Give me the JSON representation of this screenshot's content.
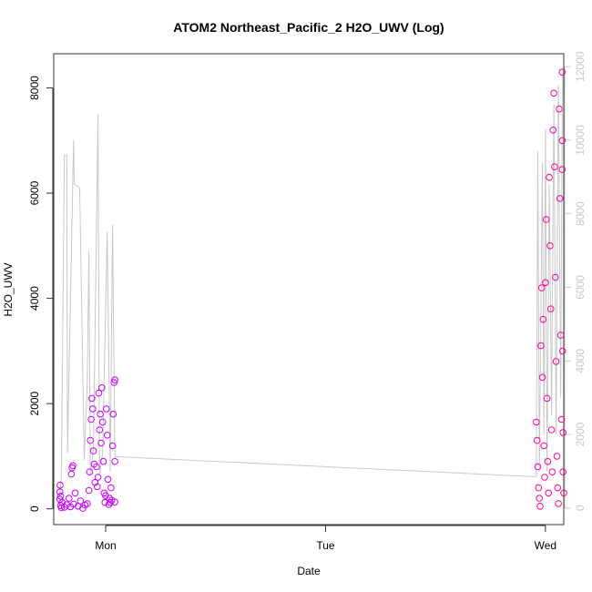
{
  "chart_data": {
    "type": "scatter",
    "title": "ATOM2 Northeast_Pacific_2 H2O_UWV (Log)",
    "xlabel": "Date",
    "ylabel": "H2O_UWV",
    "x_ticks": [
      "Mon",
      "Tue",
      "Wed"
    ],
    "y_ticks": [
      "0",
      "2000",
      "4000",
      "6000",
      "8000"
    ],
    "y_right_ticks": [
      "0",
      "2000",
      "4000",
      "6000",
      "8000",
      "10000",
      "12000"
    ],
    "x_range": [
      "Sun 18:20",
      "Wed 02:00"
    ],
    "ylim": [
      -300,
      8650
    ],
    "y_right_lim": [
      -450,
      12350
    ],
    "grid": false,
    "colors": {
      "points_early": "#cc00ff",
      "points_late": "#ff0099",
      "line": "#c8c8c8"
    },
    "series": [
      {
        "marker": "circle",
        "points": [
          {
            "x": "Sun 19:00",
            "y": 320
          },
          {
            "x": "Sun 19:00",
            "y": 180
          },
          {
            "x": "Sun 19:02",
            "y": 450
          },
          {
            "x": "Sun 19:05",
            "y": 60
          },
          {
            "x": "Sun 19:05",
            "y": 240
          },
          {
            "x": "Sun 19:10",
            "y": 20
          },
          {
            "x": "Sun 19:15",
            "y": 120
          },
          {
            "x": "Sun 19:30",
            "y": 30
          },
          {
            "x": "Sun 19:45",
            "y": 80
          },
          {
            "x": "Sun 20:00",
            "y": 200
          },
          {
            "x": "Sun 20:10",
            "y": 40
          },
          {
            "x": "Sun 20:15",
            "y": 660
          },
          {
            "x": "Sun 20:20",
            "y": 780
          },
          {
            "x": "Sun 20:25",
            "y": 820
          },
          {
            "x": "Sun 20:30",
            "y": 90
          },
          {
            "x": "Sun 20:40",
            "y": 300
          },
          {
            "x": "Sun 21:00",
            "y": 50
          },
          {
            "x": "Sun 21:15",
            "y": 150
          },
          {
            "x": "Sun 21:30",
            "y": 10
          },
          {
            "x": "Sun 21:45",
            "y": 70
          },
          {
            "x": "Sun 22:00",
            "y": 100
          },
          {
            "x": "Sun 22:10",
            "y": 350
          },
          {
            "x": "Sun 22:15",
            "y": 700
          },
          {
            "x": "Sun 22:20",
            "y": 1300
          },
          {
            "x": "Sun 22:25",
            "y": 1700
          },
          {
            "x": "Sun 22:30",
            "y": 2100
          },
          {
            "x": "Sun 22:35",
            "y": 1900
          },
          {
            "x": "Sun 22:40",
            "y": 1100
          },
          {
            "x": "Sun 22:45",
            "y": 850
          },
          {
            "x": "Sun 22:50",
            "y": 500
          },
          {
            "x": "Sun 23:00",
            "y": 800
          },
          {
            "x": "Sun 23:05",
            "y": 420
          },
          {
            "x": "Sun 23:10",
            "y": 600
          },
          {
            "x": "Sun 23:15",
            "y": 2200
          },
          {
            "x": "Sun 23:20",
            "y": 1500
          },
          {
            "x": "Sun 23:25",
            "y": 1800
          },
          {
            "x": "Sun 23:30",
            "y": 1250
          },
          {
            "x": "Sun 23:35",
            "y": 2300
          },
          {
            "x": "Sun 23:40",
            "y": 1650
          },
          {
            "x": "Sun 23:45",
            "y": 900
          },
          {
            "x": "Sun 23:50",
            "y": 300
          },
          {
            "x": "Sun 23:55",
            "y": 120
          },
          {
            "x": "Mon 00:00",
            "y": 250
          },
          {
            "x": "Mon 00:05",
            "y": 1900
          },
          {
            "x": "Mon 00:10",
            "y": 1400
          },
          {
            "x": "Mon 00:15",
            "y": 560
          },
          {
            "x": "Mon 00:20",
            "y": 80
          },
          {
            "x": "Mon 00:25",
            "y": 200
          },
          {
            "x": "Mon 00:30",
            "y": 120
          },
          {
            "x": "Mon 00:35",
            "y": 400
          },
          {
            "x": "Mon 00:40",
            "y": 160
          },
          {
            "x": "Mon 00:45",
            "y": 1200
          },
          {
            "x": "Mon 00:50",
            "y": 1800
          },
          {
            "x": "Mon 00:55",
            "y": 2400
          },
          {
            "x": "Mon 01:00",
            "y": 2450
          },
          {
            "x": "Mon 01:00",
            "y": 900
          },
          {
            "x": "Mon 01:00",
            "y": 130
          },
          {
            "x": "Tue 23:00",
            "y": 1650
          },
          {
            "x": "Tue 23:05",
            "y": 1300
          },
          {
            "x": "Tue 23:10",
            "y": 800
          },
          {
            "x": "Tue 23:15",
            "y": 400
          },
          {
            "x": "Tue 23:20",
            "y": 200
          },
          {
            "x": "Tue 23:25",
            "y": 50
          },
          {
            "x": "Tue 23:30",
            "y": 3100
          },
          {
            "x": "Tue 23:35",
            "y": 4200
          },
          {
            "x": "Tue 23:40",
            "y": 2500
          },
          {
            "x": "Tue 23:45",
            "y": 3600
          },
          {
            "x": "Tue 23:50",
            "y": 1200
          },
          {
            "x": "Tue 23:55",
            "y": 600
          },
          {
            "x": "Wed 00:00",
            "y": 4300
          },
          {
            "x": "Wed 00:05",
            "y": 5500
          },
          {
            "x": "Wed 00:10",
            "y": 2100
          },
          {
            "x": "Wed 00:15",
            "y": 900
          },
          {
            "x": "Wed 00:20",
            "y": 300
          },
          {
            "x": "Wed 00:25",
            "y": 6300
          },
          {
            "x": "Wed 00:30",
            "y": 5000
          },
          {
            "x": "Wed 00:35",
            "y": 3800
          },
          {
            "x": "Wed 00:40",
            "y": 1500
          },
          {
            "x": "Wed 00:45",
            "y": 700
          },
          {
            "x": "Wed 00:50",
            "y": 7200
          },
          {
            "x": "Wed 00:55",
            "y": 7900
          },
          {
            "x": "Wed 01:00",
            "y": 6500
          },
          {
            "x": "Wed 01:05",
            "y": 4400
          },
          {
            "x": "Wed 01:10",
            "y": 2800
          },
          {
            "x": "Wed 01:15",
            "y": 1000
          },
          {
            "x": "Wed 01:20",
            "y": 400
          },
          {
            "x": "Wed 01:25",
            "y": 100
          },
          {
            "x": "Wed 01:30",
            "y": 7600
          },
          {
            "x": "Wed 01:35",
            "y": 5900
          },
          {
            "x": "Wed 01:40",
            "y": 3300
          },
          {
            "x": "Wed 01:45",
            "y": 1700
          },
          {
            "x": "Wed 01:50",
            "y": 8300
          },
          {
            "x": "Wed 01:50",
            "y": 7000
          },
          {
            "x": "Wed 01:50",
            "y": 6450
          },
          {
            "x": "Wed 01:52",
            "y": 3000
          },
          {
            "x": "Wed 01:55",
            "y": 1450
          },
          {
            "x": "Wed 01:55",
            "y": 700
          },
          {
            "x": "Wed 02:00",
            "y": 300
          }
        ]
      },
      {
        "marker": "line",
        "axis": "right",
        "points": [
          {
            "x": "Sun 19:00",
            "y": 300
          },
          {
            "x": "Sun 19:10",
            "y": 900
          },
          {
            "x": "Sun 19:30",
            "y": 9600
          },
          {
            "x": "Sun 19:45",
            "y": 9600
          },
          {
            "x": "Sun 19:50",
            "y": 1500
          },
          {
            "x": "Sun 20:30",
            "y": 10000
          },
          {
            "x": "Sun 20:35",
            "y": 8800
          },
          {
            "x": "Sun 21:10",
            "y": 8700
          },
          {
            "x": "Sun 21:40",
            "y": 1300
          },
          {
            "x": "Sun 22:00",
            "y": 3500
          },
          {
            "x": "Sun 22:10",
            "y": 7000
          },
          {
            "x": "Sun 22:20",
            "y": 900
          },
          {
            "x": "Sun 22:40",
            "y": 1600
          },
          {
            "x": "Sun 23:10",
            "y": 10700
          },
          {
            "x": "Sun 23:20",
            "y": 900
          },
          {
            "x": "Sun 23:40",
            "y": 1500
          },
          {
            "x": "Mon 00:10",
            "y": 7500
          },
          {
            "x": "Mon 00:30",
            "y": 1000
          },
          {
            "x": "Mon 00:45",
            "y": 7700
          },
          {
            "x": "Mon 01:00",
            "y": 1400
          },
          {
            "x": "Tue 23:00",
            "y": 850
          },
          {
            "x": "Tue 23:10",
            "y": 9700
          },
          {
            "x": "Tue 23:20",
            "y": 1000
          },
          {
            "x": "Tue 23:40",
            "y": 9400
          },
          {
            "x": "Tue 23:50",
            "y": 2000
          },
          {
            "x": "Wed 00:00",
            "y": 10300
          },
          {
            "x": "Wed 00:10",
            "y": 1000
          },
          {
            "x": "Wed 00:25",
            "y": 8800
          },
          {
            "x": "Wed 00:40",
            "y": 2500
          },
          {
            "x": "Wed 00:55",
            "y": 11000
          },
          {
            "x": "Wed 01:10",
            "y": 2000
          },
          {
            "x": "Wed 01:25",
            "y": 11500
          },
          {
            "x": "Wed 01:40",
            "y": 3000
          },
          {
            "x": "Wed 01:50",
            "y": 10800
          },
          {
            "x": "Wed 01:55",
            "y": 12000
          }
        ]
      }
    ]
  }
}
